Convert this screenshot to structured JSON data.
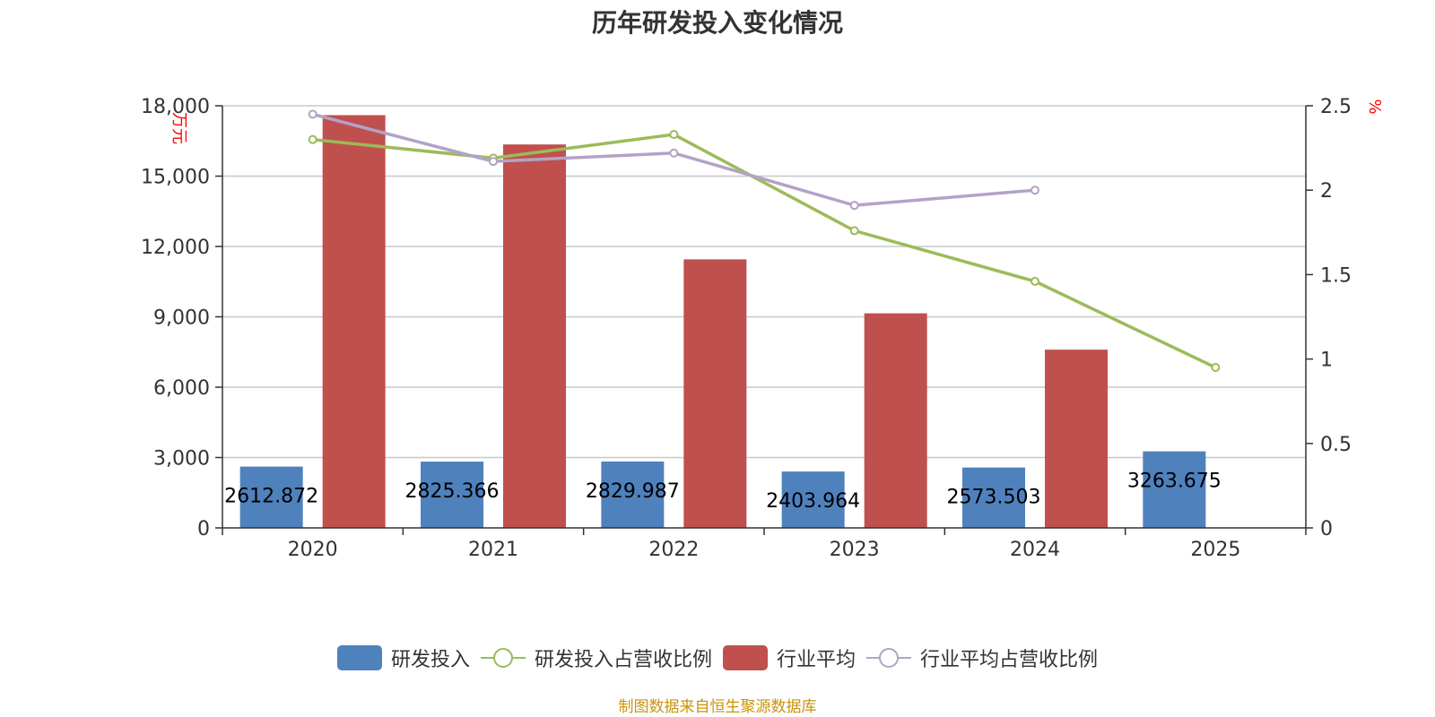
{
  "title": "历年研发投入变化情况",
  "source": "制图数据来自恒生聚源数据库",
  "colors": {
    "rd": "#4f81bd",
    "rd_ratio": "#9bbb59",
    "industry": "#c0504d",
    "industry_ratio": "#b3a2c7",
    "unit": "#ff0000",
    "axis": "#333333",
    "grid": "#c8c8c8"
  },
  "chart_data": {
    "type": "bar",
    "categories": [
      "2020",
      "2021",
      "2022",
      "2023",
      "2024",
      "2025"
    ],
    "left_axis": {
      "label": "万元",
      "ylim": [
        0,
        18000
      ],
      "ticks": [
        "0",
        "3,000",
        "6,000",
        "9,000",
        "12,000",
        "15,000",
        "18,000"
      ],
      "tick_values": [
        0,
        3000,
        6000,
        9000,
        12000,
        15000,
        18000
      ]
    },
    "right_axis": {
      "label": "%",
      "ylim": [
        0,
        2.5
      ],
      "ticks": [
        "0",
        "0.5",
        "1",
        "1.5",
        "2",
        "2.5"
      ],
      "tick_values": [
        0,
        0.5,
        1,
        1.5,
        2,
        2.5
      ]
    },
    "grid": true,
    "legend_position": "bottom-center",
    "series": [
      {
        "name": "研发投入",
        "type": "bar",
        "axis": "left",
        "values": [
          2612.872,
          2825.366,
          2829.987,
          2403.964,
          2573.503,
          3263.675
        ],
        "labels": [
          "2612.872",
          "2825.366",
          "2829.987",
          "2403.964",
          "2573.503",
          "3263.675"
        ]
      },
      {
        "name": "研发投入占营收比例",
        "type": "line",
        "axis": "right",
        "values": [
          2.3,
          2.19,
          2.33,
          1.76,
          1.46,
          0.95
        ]
      },
      {
        "name": "行业平均",
        "type": "bar",
        "axis": "left",
        "values": [
          17600,
          16350,
          11450,
          9150,
          7600,
          null
        ]
      },
      {
        "name": "行业平均占营收比例",
        "type": "line",
        "axis": "right",
        "values": [
          2.45,
          2.17,
          2.22,
          1.91,
          2.0,
          null
        ]
      }
    ]
  }
}
